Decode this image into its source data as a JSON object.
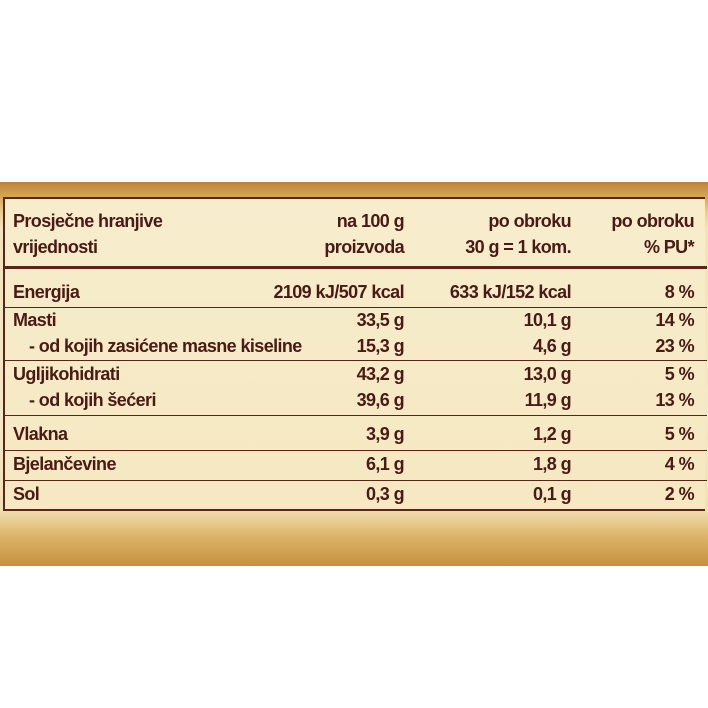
{
  "table": {
    "header": [
      [
        "Prosječne hranjive",
        "vrijednosti"
      ],
      [
        "na 100 g",
        "proizvoda"
      ],
      [
        "po obroku",
        "30 g = 1 kom."
      ],
      [
        "po obroku",
        "% PU*"
      ]
    ],
    "groups": [
      [
        [
          "Energija",
          "2109 kJ/507 kcal",
          "633 kJ/152 kcal",
          "8 %"
        ]
      ],
      [
        [
          "Masti",
          "33,5 g",
          "10,1 g",
          "14 %"
        ],
        [
          "- od kojih zasićene masne kiseline",
          "15,3 g",
          "4,6 g",
          "23 %"
        ]
      ],
      [
        [
          "Ugljikohidrati",
          "43,2 g",
          "13,0 g",
          "5 %"
        ],
        [
          "- od kojih šećeri",
          "39,6 g",
          "11,9 g",
          "13 %"
        ]
      ],
      [
        [
          "Vlakna",
          "3,9 g",
          "1,2 g",
          "5 %"
        ]
      ],
      [
        [
          "Bjelančevine",
          "6,1 g",
          "1,8 g",
          "4 %"
        ]
      ],
      [
        [
          "Sol",
          "0,3 g",
          "0,1 g",
          "2 %"
        ]
      ]
    ]
  }
}
